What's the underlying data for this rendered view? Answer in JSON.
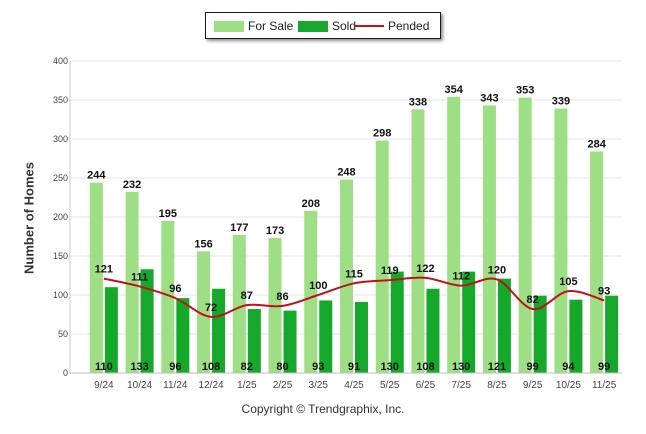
{
  "chart_data": {
    "type": "bar",
    "title": "",
    "xlabel": "",
    "ylabel": "Number of Homes",
    "ylim": [
      0,
      400
    ],
    "yticks": [
      0,
      50,
      100,
      150,
      200,
      250,
      300,
      350,
      400
    ],
    "grid": true,
    "legend_position": "top-center",
    "categories": [
      "9/24",
      "10/24",
      "11/24",
      "12/24",
      "1/25",
      "2/25",
      "3/25",
      "4/25",
      "5/25",
      "6/25",
      "7/25",
      "8/25",
      "9/25",
      "10/25",
      "11/25"
    ],
    "series": [
      {
        "name": "For Sale",
        "type": "bar",
        "color": "#9ede84",
        "values": [
          244,
          232,
          195,
          156,
          177,
          173,
          208,
          248,
          298,
          338,
          354,
          343,
          353,
          339,
          284
        ]
      },
      {
        "name": "Sold",
        "type": "bar",
        "color": "#15a82a",
        "values": [
          110,
          133,
          96,
          108,
          82,
          80,
          93,
          91,
          130,
          108,
          130,
          121,
          99,
          94,
          99
        ]
      },
      {
        "name": "Pended",
        "type": "line",
        "color": "#c0101a",
        "values": [
          121,
          111,
          96,
          72,
          87,
          86,
          100,
          115,
          119,
          122,
          112,
          120,
          82,
          105,
          93
        ]
      }
    ]
  },
  "footer": {
    "copyright": "Copyright © Trendgraphix, Inc."
  }
}
